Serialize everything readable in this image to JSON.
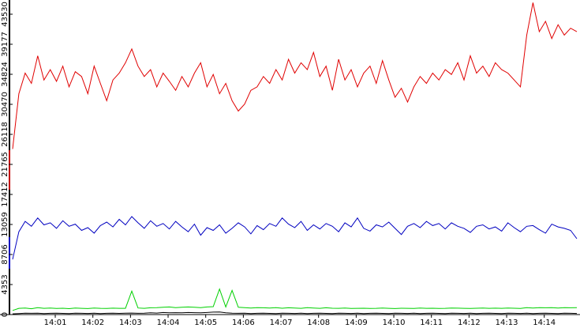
{
  "chart_data": {
    "type": "line",
    "x": [
      -8,
      2,
      12,
      22,
      32,
      42,
      52,
      62,
      72,
      82,
      92,
      102,
      112,
      122,
      132,
      142,
      152,
      162,
      172,
      182,
      192,
      202,
      212,
      222,
      232,
      242,
      252,
      262,
      272,
      282,
      292,
      302,
      312,
      322,
      332,
      342,
      352,
      362,
      372,
      382,
      392,
      402,
      412,
      422,
      432,
      442,
      452,
      462,
      472,
      482,
      492,
      502,
      512,
      522,
      532,
      542,
      552,
      562,
      572,
      582,
      592,
      602,
      612,
      622,
      632,
      642,
      652,
      662,
      672,
      682,
      692,
      702,
      712,
      722,
      732,
      742,
      752,
      762,
      772,
      782,
      792,
      802,
      812,
      822,
      832,
      842,
      852,
      862,
      872,
      882,
      892
    ],
    "xlim": [
      -8,
      897
    ],
    "xticks": [
      {
        "value": 60,
        "label": "14:01"
      },
      {
        "value": 120,
        "label": "14:02"
      },
      {
        "value": 180,
        "label": "14:03"
      },
      {
        "value": 240,
        "label": "14:04"
      },
      {
        "value": 300,
        "label": "14:05"
      },
      {
        "value": 360,
        "label": "14:06"
      },
      {
        "value": 420,
        "label": "14:07"
      },
      {
        "value": 480,
        "label": "14:08"
      },
      {
        "value": 540,
        "label": "14:09"
      },
      {
        "value": 600,
        "label": "14:10"
      },
      {
        "value": 660,
        "label": "14:11"
      },
      {
        "value": 720,
        "label": "14:12"
      },
      {
        "value": 780,
        "label": "14:13"
      },
      {
        "value": 840,
        "label": "14:14"
      }
    ],
    "ylim": [
      0,
      45590
    ],
    "yticks": [
      0,
      4353,
      8706,
      13059,
      17412,
      21765,
      26118,
      30470,
      34824,
      39177,
      43530
    ],
    "series": [
      {
        "color": "#e00000",
        "values": [
          24000,
          32000,
          35000,
          33500,
          37500,
          34000,
          35500,
          33800,
          36000,
          33000,
          35200,
          34500,
          32000,
          36000,
          33500,
          31000,
          34000,
          35000,
          36500,
          38500,
          36000,
          34500,
          35500,
          33000,
          35000,
          33800,
          32500,
          34500,
          33000,
          35000,
          36500,
          33000,
          34800,
          32000,
          33500,
          31000,
          29500,
          30500,
          32500,
          33000,
          34500,
          33500,
          35500,
          34000,
          37000,
          35000,
          36500,
          35500,
          38000,
          34500,
          36000,
          32500,
          37000,
          34000,
          35500,
          33000,
          35000,
          36000,
          33500,
          36800,
          34000,
          31500,
          32800,
          30800,
          33000,
          34500,
          33500,
          35000,
          34000,
          35500,
          34800,
          36500,
          34000,
          37500,
          35000,
          36000,
          34500,
          36500,
          35500,
          35000,
          34000,
          33000,
          40500,
          45200,
          41000,
          42500,
          40000,
          42000,
          40500,
          41500,
          41000
        ]
      },
      {
        "color": "#0000c0",
        "values": [
          8000,
          12000,
          13500,
          12800,
          14000,
          13000,
          13300,
          12500,
          13600,
          12800,
          13100,
          12200,
          12600,
          11800,
          12900,
          13400,
          12700,
          13800,
          13000,
          14200,
          13300,
          12500,
          13600,
          12800,
          13200,
          12400,
          13500,
          12700,
          12000,
          13100,
          11500,
          12600,
          12200,
          13000,
          11800,
          12500,
          13300,
          12700,
          11700,
          12900,
          12300,
          13200,
          12800,
          14000,
          13100,
          12600,
          13500,
          12200,
          13000,
          12400,
          13200,
          12800,
          12000,
          13300,
          12700,
          14000,
          12500,
          12100,
          13000,
          12700,
          13400,
          12500,
          11600,
          12800,
          13200,
          12600,
          13500,
          12900,
          13200,
          12400,
          13300,
          12800,
          12500,
          11900,
          12800,
          13000,
          12400,
          12700,
          12100,
          13300,
          12600,
          12000,
          12800,
          12900,
          12300,
          11800,
          13100,
          12700,
          12500,
          12200,
          11000
        ]
      },
      {
        "color": "#00d000",
        "values": [
          600,
          900,
          950,
          850,
          1000,
          900,
          950,
          880,
          920,
          860,
          940,
          900,
          870,
          950,
          900,
          880,
          930,
          910,
          900,
          3400,
          950,
          900,
          980,
          1000,
          1050,
          1100,
          1000,
          1050,
          1100,
          1050,
          1000,
          1100,
          1150,
          3700,
          1100,
          3500,
          1050,
          1000,
          950,
          1000,
          980,
          950,
          1000,
          920,
          980,
          950,
          900,
          1000,
          950,
          900,
          980,
          920,
          900,
          950,
          880,
          900,
          920,
          880,
          900,
          950,
          900,
          870,
          920,
          900,
          880,
          950,
          900,
          920,
          880,
          900,
          950,
          930,
          900,
          880,
          920,
          950,
          900,
          930,
          900,
          950,
          920,
          880,
          1000,
          950,
          1000,
          980,
          1000,
          950,
          1000,
          980,
          1000
        ]
      },
      {
        "color": "#000000",
        "values": [
          100,
          150,
          200,
          180,
          200,
          150,
          180,
          200,
          170,
          150,
          200,
          180,
          160,
          200,
          150,
          180,
          200,
          170,
          200,
          220,
          180,
          200,
          250,
          220,
          300,
          250,
          280,
          260,
          300,
          280,
          250,
          300,
          350,
          380,
          250,
          200,
          180,
          200,
          150,
          180,
          200,
          170,
          150,
          200,
          180,
          160,
          200,
          150,
          180,
          200,
          170,
          150,
          200,
          180,
          160,
          200,
          150,
          180,
          200,
          170,
          150,
          200,
          180,
          160,
          200,
          150,
          180,
          200,
          170,
          150,
          200,
          180,
          160,
          200,
          150,
          180,
          200,
          170,
          150,
          200,
          180,
          160,
          200,
          150,
          180,
          200,
          170,
          150,
          200,
          180,
          160
        ]
      }
    ]
  }
}
